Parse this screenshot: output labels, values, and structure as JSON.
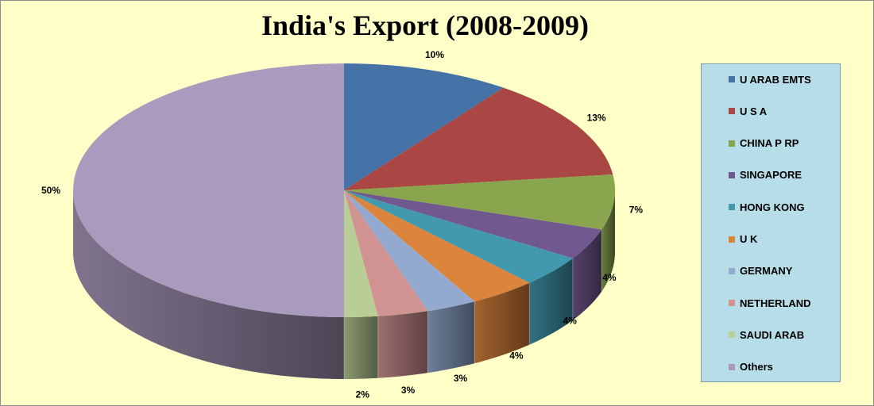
{
  "chart_data": {
    "type": "pie",
    "title": "India's Export (2008-2009)",
    "categories": [
      "U ARAB EMTS",
      "U S A",
      "CHINA P RP",
      "SINGAPORE",
      "HONG KONG",
      "U K",
      "GERMANY",
      "NETHERLAND",
      "SAUDI ARAB",
      "Others"
    ],
    "values": [
      10,
      13,
      7,
      4,
      4,
      4,
      3,
      3,
      2,
      50
    ],
    "labels": [
      "10%",
      "13%",
      "7%",
      "4%",
      "4%",
      "4%",
      "3%",
      "3%",
      "2%",
      "50%"
    ],
    "colors": [
      "#4572a7",
      "#aa4643",
      "#89a54e",
      "#71588f",
      "#4198af",
      "#db843d",
      "#93a9cf",
      "#d19392",
      "#b9cd96",
      "#a99bbd"
    ],
    "legend_position": "right",
    "grid": false
  }
}
